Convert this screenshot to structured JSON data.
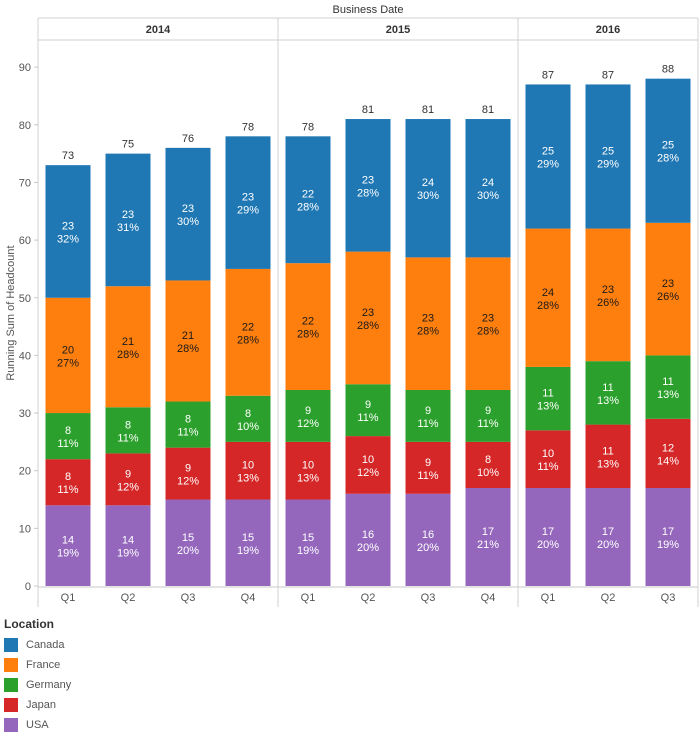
{
  "chart_data": {
    "type": "bar",
    "stacked": true,
    "title": "",
    "column_header": "Business Date",
    "ylabel": "Running Sum of Headcount",
    "ylim": [
      0,
      95
    ],
    "yticks": [
      0,
      10,
      20,
      30,
      40,
      50,
      60,
      70,
      80,
      90
    ],
    "grid": false,
    "legend_position": "bottom-left",
    "years": [
      {
        "year": "2014",
        "quarters": [
          "Q1",
          "Q2",
          "Q3",
          "Q4"
        ]
      },
      {
        "year": "2015",
        "quarters": [
          "Q1",
          "Q2",
          "Q3",
          "Q4"
        ]
      },
      {
        "year": "2016",
        "quarters": [
          "Q1",
          "Q2",
          "Q3"
        ]
      }
    ],
    "totals": [
      73,
      75,
      76,
      78,
      78,
      81,
      81,
      81,
      87,
      87,
      88
    ],
    "series": [
      {
        "name": "USA",
        "color": "#9467bd",
        "values": [
          14,
          14,
          15,
          15,
          15,
          16,
          16,
          17,
          17,
          17,
          17
        ],
        "percents": [
          "19%",
          "19%",
          "20%",
          "19%",
          "19%",
          "20%",
          "20%",
          "21%",
          "20%",
          "20%",
          "19%"
        ]
      },
      {
        "name": "Japan",
        "color": "#d62728",
        "values": [
          8,
          9,
          9,
          10,
          10,
          10,
          9,
          8,
          10,
          11,
          12
        ],
        "percents": [
          "11%",
          "12%",
          "12%",
          "13%",
          "13%",
          "12%",
          "11%",
          "10%",
          "11%",
          "13%",
          "14%"
        ]
      },
      {
        "name": "Germany",
        "color": "#2ca02c",
        "values": [
          8,
          8,
          8,
          8,
          9,
          9,
          9,
          9,
          11,
          11,
          11
        ],
        "percents": [
          "11%",
          "11%",
          "11%",
          "10%",
          "12%",
          "11%",
          "11%",
          "11%",
          "13%",
          "13%",
          "13%"
        ]
      },
      {
        "name": "France",
        "color": "#ff7f0e",
        "values": [
          20,
          21,
          21,
          22,
          22,
          23,
          23,
          23,
          24,
          23,
          23
        ],
        "percents": [
          "27%",
          "28%",
          "28%",
          "28%",
          "28%",
          "28%",
          "28%",
          "28%",
          "28%",
          "26%",
          "26%"
        ]
      },
      {
        "name": "Canada",
        "color": "#1f77b4",
        "values": [
          23,
          23,
          23,
          23,
          22,
          23,
          24,
          24,
          25,
          25,
          25
        ],
        "percents": [
          "32%",
          "31%",
          "30%",
          "29%",
          "28%",
          "28%",
          "30%",
          "30%",
          "29%",
          "29%",
          "28%"
        ]
      }
    ]
  },
  "legend": {
    "title": "Location",
    "items": [
      {
        "label": "Canada",
        "color": "#1f77b4"
      },
      {
        "label": "France",
        "color": "#ff7f0e"
      },
      {
        "label": "Germany",
        "color": "#2ca02c"
      },
      {
        "label": "Japan",
        "color": "#d62728"
      },
      {
        "label": "USA",
        "color": "#9467bd"
      }
    ]
  }
}
